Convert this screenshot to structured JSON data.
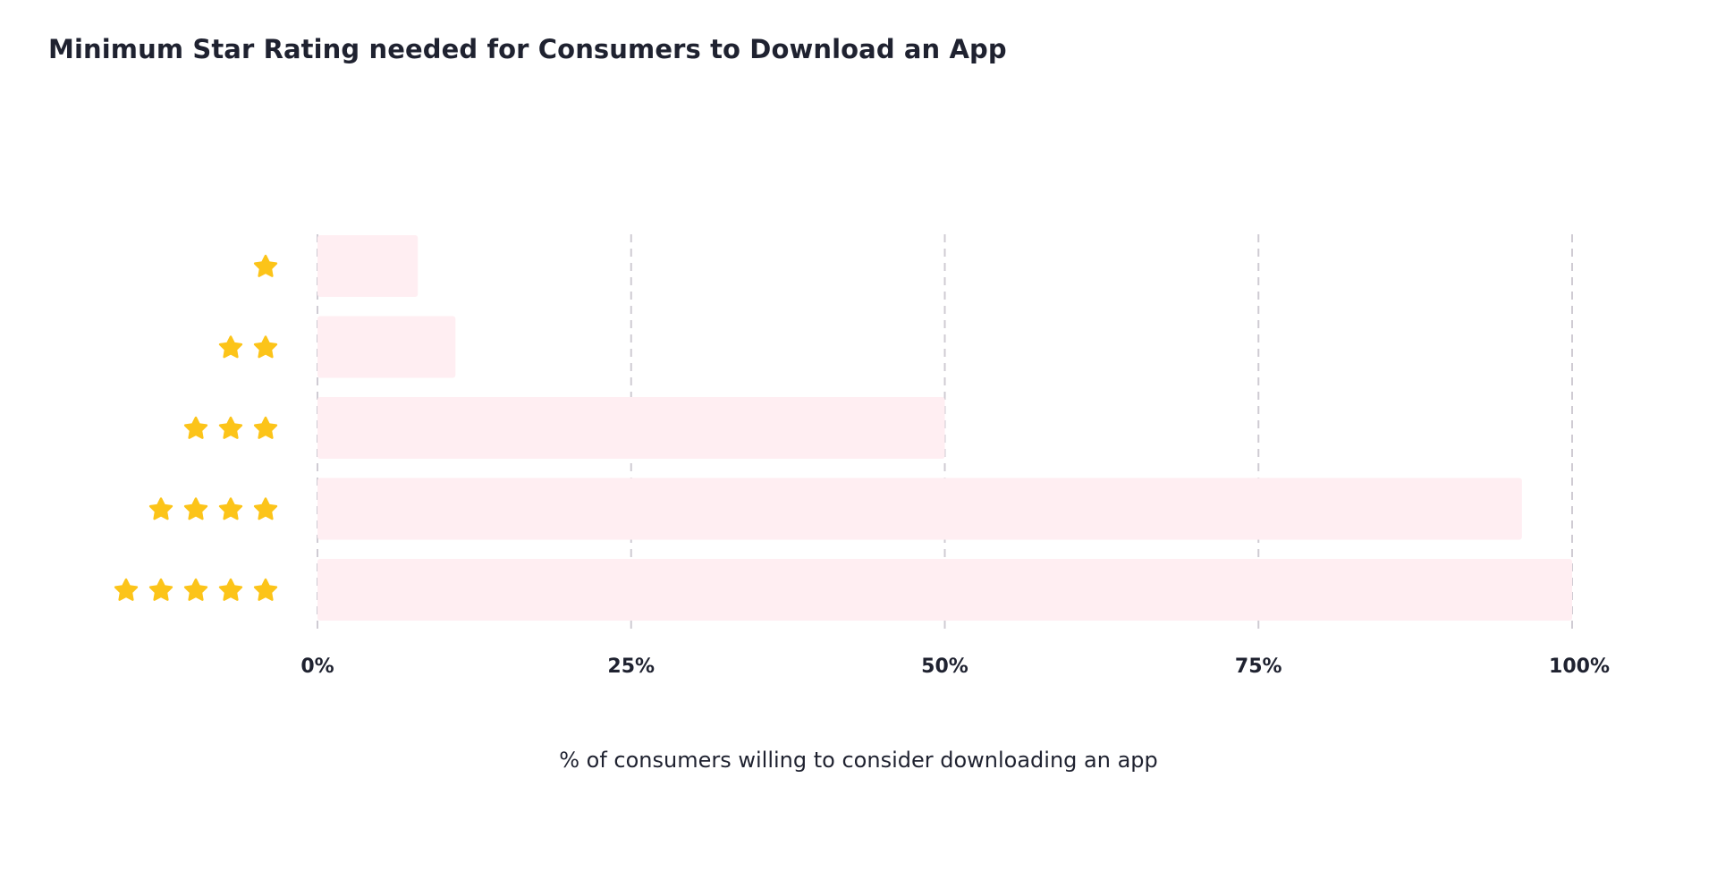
{
  "chart_data": {
    "type": "bar",
    "orientation": "horizontal",
    "title": "Minimum Star Rating needed for Consumers to Download an App",
    "xlabel": "% of consumers willing to consider downloading an app",
    "ylabel": "",
    "categories": [
      1,
      2,
      3,
      4,
      5
    ],
    "category_icon": "star-icon",
    "values": [
      8,
      11,
      50,
      96,
      100
    ],
    "xlim": [
      0,
      100
    ],
    "x_ticks": [
      0,
      25,
      50,
      75,
      100
    ],
    "x_tick_labels": [
      "0%",
      "25%",
      "50%",
      "75%",
      "100%"
    ],
    "grid": "vertical-dashed",
    "colors": {
      "bar": "#ffeef2",
      "star": "#fcc419",
      "grid": "#cfcbd3",
      "text": "#1f2230"
    }
  }
}
